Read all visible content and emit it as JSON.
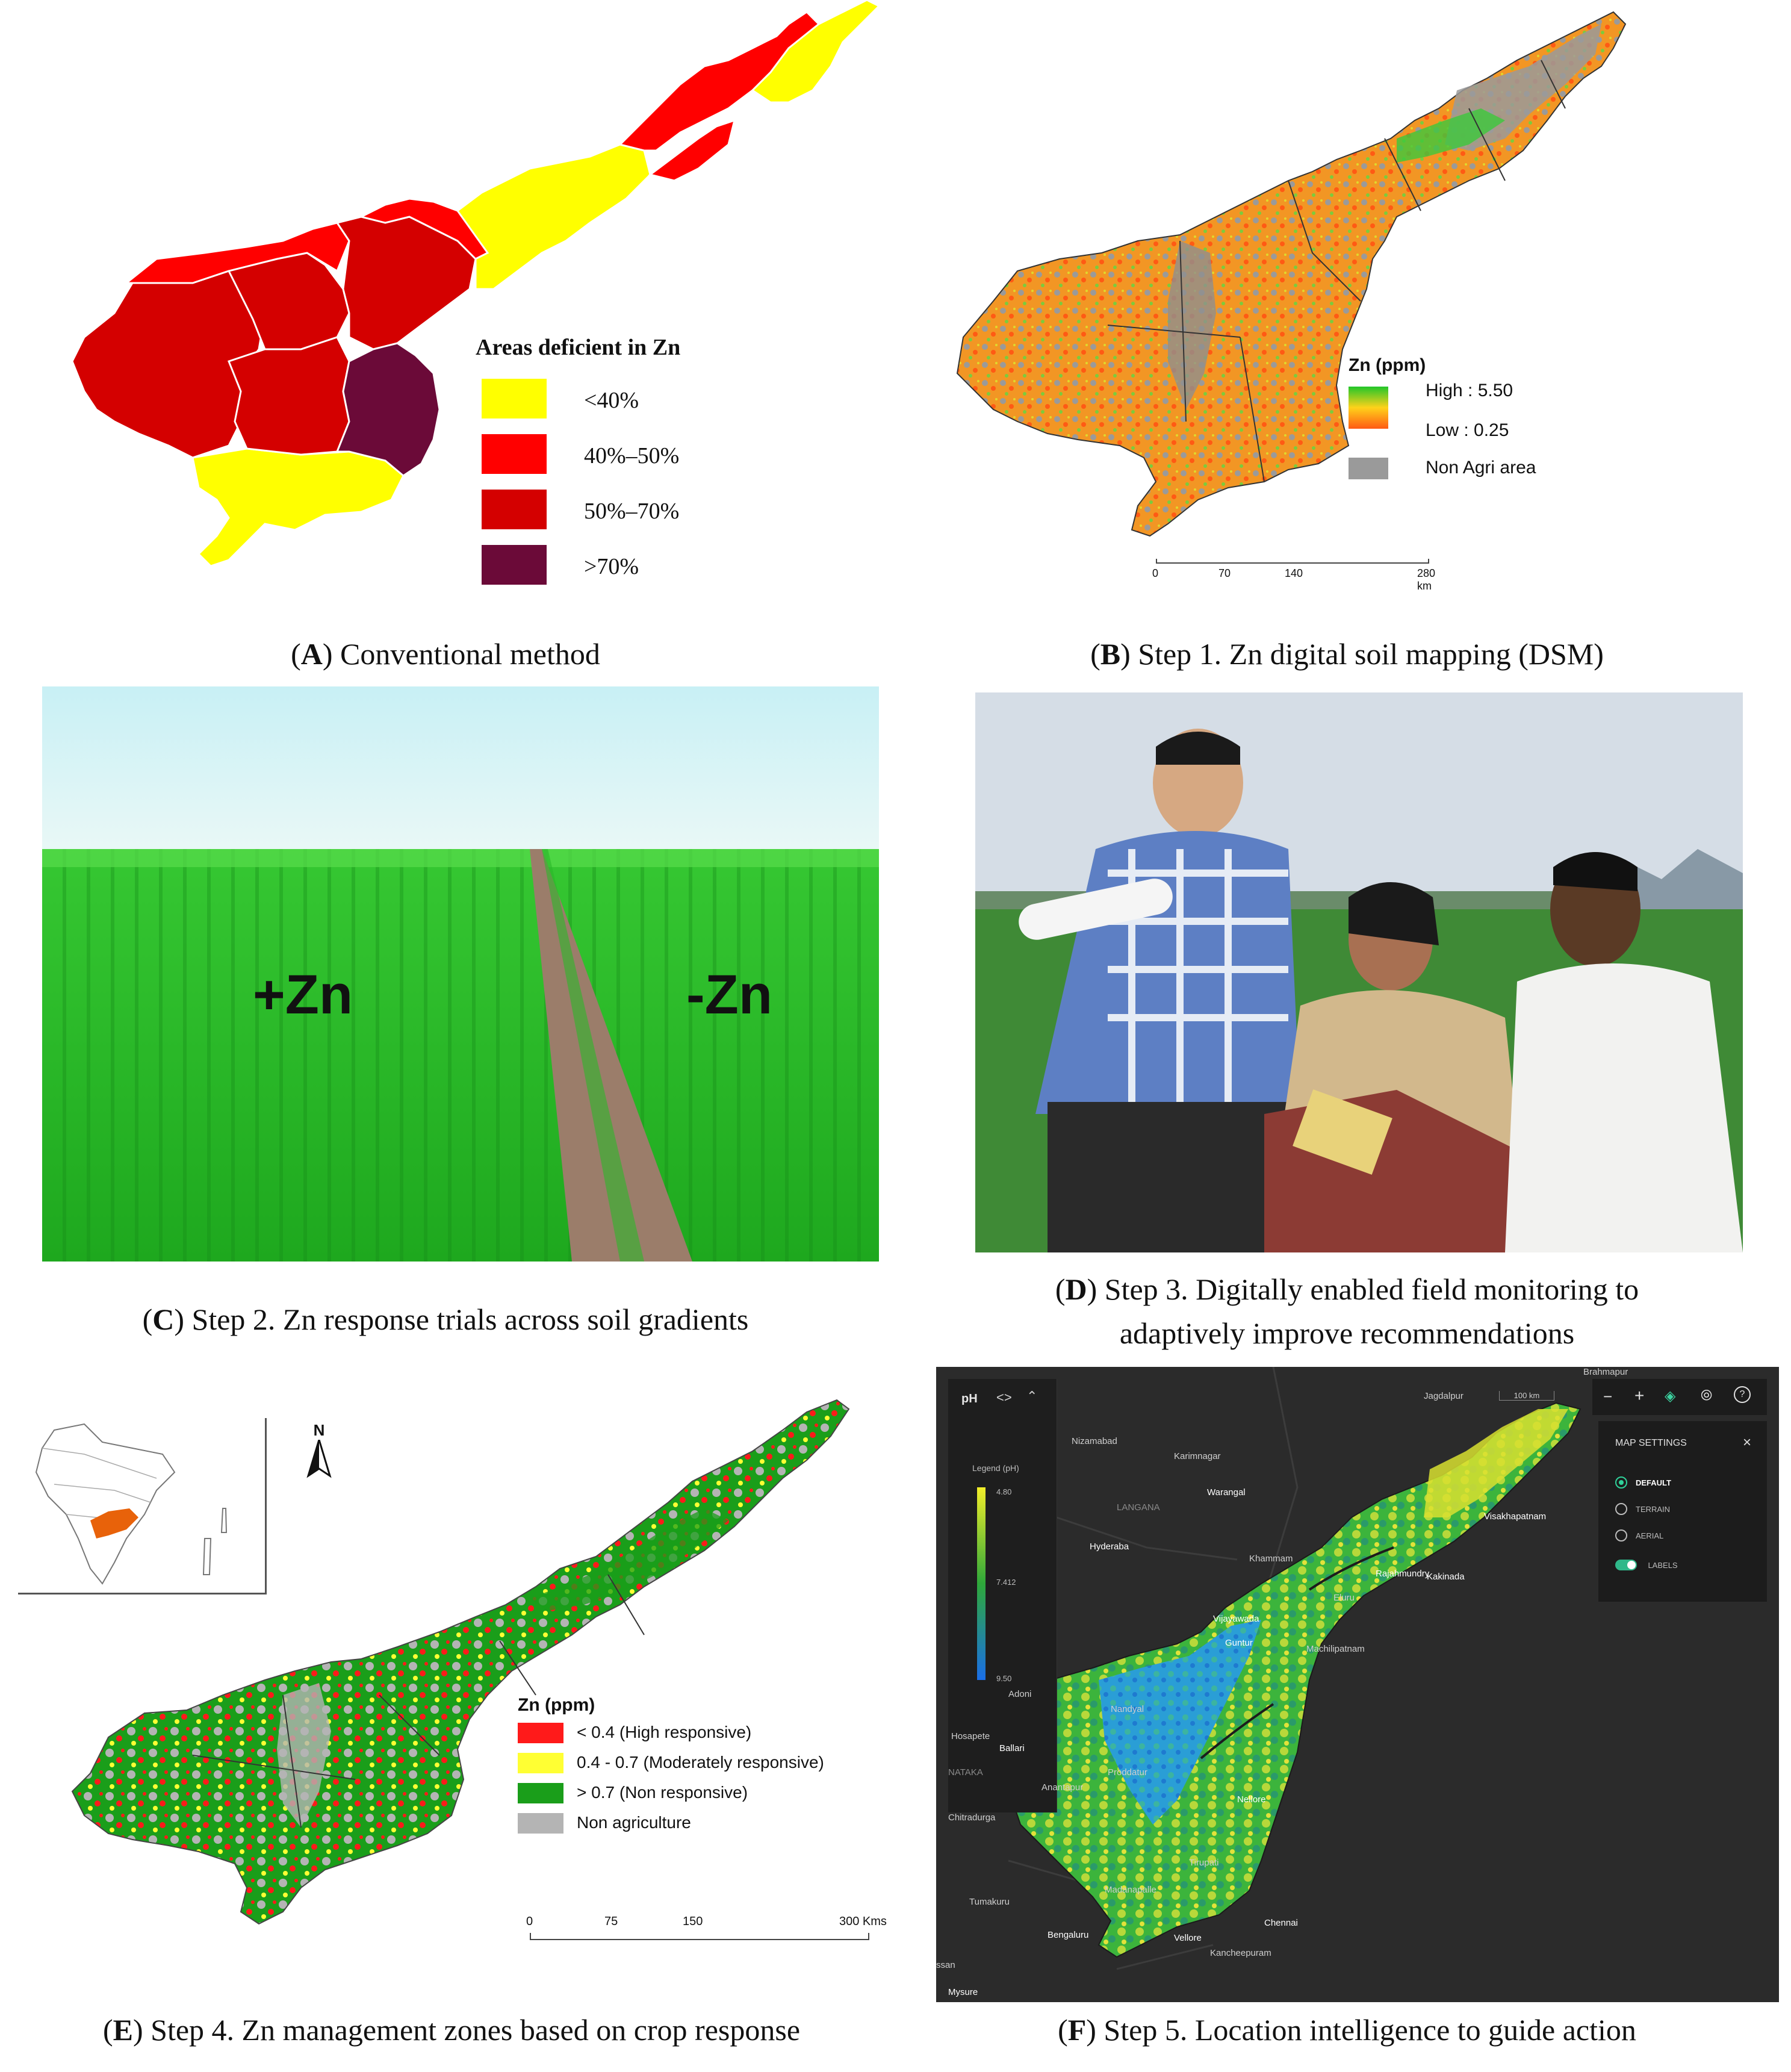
{
  "panel_a": {
    "caption_letter": "A",
    "caption_rest": ") Conventional method",
    "legend_title": "Areas deficient in Zn",
    "legend_items": [
      {
        "label": "<40%",
        "color": "#ffff00"
      },
      {
        "label": "40%–50%",
        "color": "#ff0000"
      },
      {
        "label": "50%–70%",
        "color": "#d40000"
      },
      {
        "label": ">70%",
        "color": "#6b0a38"
      }
    ]
  },
  "panel_b": {
    "caption_letter": "B",
    "caption_rest": ") Step 1. Zn digital soil mapping (DSM)",
    "legend_title": "Zn (ppm)",
    "legend_high": "High : 5.50",
    "legend_low": "Low : 0.25",
    "legend_nonagri": "Non Agri area",
    "scale_ticks": [
      "0",
      "70",
      "140",
      "280 km"
    ],
    "colors": {
      "high": "#22c62a",
      "mid": "#ffd21a",
      "low": "#ff5a14",
      "nonagri": "#9a9a9a"
    }
  },
  "panel_c": {
    "caption_letter": "C",
    "caption_rest": ") Step 2. Zn response trials across soil gradients",
    "label_plus": "+Zn",
    "label_minus": "-Zn"
  },
  "panel_d": {
    "caption_letter": "D",
    "caption_rest_line1": ") Step 3. Digitally enabled field monitoring to",
    "caption_line2": "adaptively improve recommendations"
  },
  "panel_e": {
    "caption_letter": "E",
    "caption_rest": ") Step 4. Zn management zones based on crop response",
    "north_label": "N",
    "legend_title": "Zn (ppm)",
    "legend_items": [
      {
        "label": "< 0.4 (High responsive)",
        "color": "#ff1a1a"
      },
      {
        "label": "0.4 - 0.7 (Moderately responsive)",
        "color": "#ffff33"
      },
      {
        "label": "> 0.7 (Non responsive)",
        "color": "#1a9e1a"
      },
      {
        "label": "Non agriculture",
        "color": "#b4b4b4"
      }
    ],
    "scale_ticks": [
      "0",
      "75",
      "150",
      "300 Kms"
    ]
  },
  "panel_f": {
    "caption_letter": "F",
    "caption_rest": ") Step 5. Location intelligence to guide action",
    "layer_label": "pH",
    "legend_title": "Legend (pH)",
    "legend_values": [
      "4.80",
      "7.412",
      "9.50"
    ],
    "scale_label": "100 km",
    "settings_title": "MAP SETTINGS",
    "settings_options": [
      {
        "label": "DEFAULT",
        "selected": true
      },
      {
        "label": "TERRAIN",
        "selected": false
      },
      {
        "label": "AERIAL",
        "selected": false
      }
    ],
    "labels_toggle": "LABELS",
    "cities": {
      "brahmapur": "Brahmapur",
      "jagdalpur": "Jagdalpur",
      "nizamabad": "Nizamabad",
      "karimnagar": "Karimnagar",
      "warangal": "Warangal",
      "langana": "LANGANA",
      "hyderaba": "Hyderaba",
      "khammam": "Khammam",
      "visakhapatnam": "Visakhapatnam",
      "rajahmundry": "Rajahmundry",
      "kakinada": "Kakinada",
      "eluru": "Eluru",
      "vijayawada": "Vijayawada",
      "guntur": "Guntur",
      "machilipatnam": "Machilipatnam",
      "adoni": "Adoni",
      "nandyal": "Nandyal",
      "hosapete": "Hosapete",
      "ballari": "Ballari",
      "nataka": "NATAKA",
      "proddatur": "Proddatur",
      "anantapur": "Anantapur",
      "nellore": "Nellore",
      "chitradurga": "Chitradurga",
      "tirupati": "Tirupati",
      "madanapalle": "Madanapalle",
      "tumakuru": "Tumakuru",
      "chennai": "Chennai",
      "bengaluru": "Bengaluru",
      "vellore": "Vellore",
      "kancheepuram": "Kancheepuram",
      "ssan": "ssan",
      "mysure": "Mysure"
    }
  }
}
